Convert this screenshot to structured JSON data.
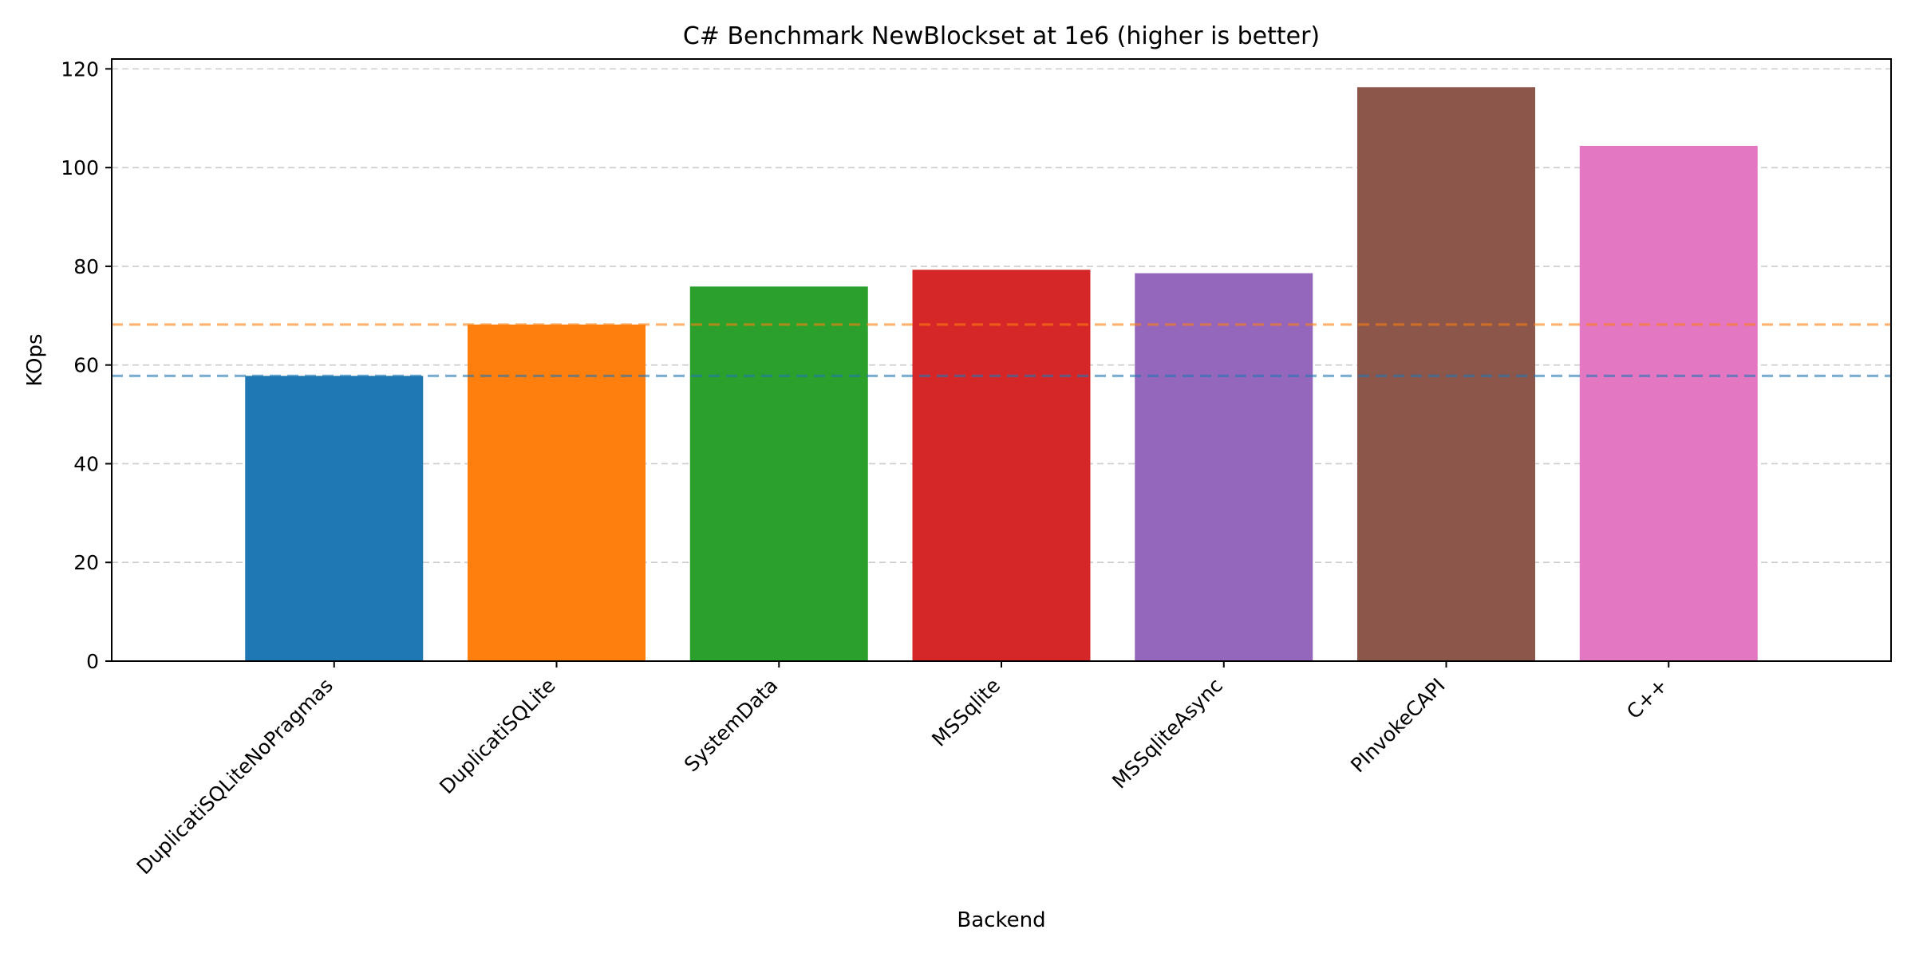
{
  "chart_data": {
    "type": "bar",
    "title": "C# Benchmark NewBlockset at 1e6 (higher is better)",
    "xlabel": "Backend",
    "ylabel": "KOps",
    "categories": [
      "DuplicatiSQLiteNoPragmas",
      "DuplicatiSQLite",
      "SystemData",
      "MSSqlite",
      "MSSqliteAsync",
      "PInvokeCAPI",
      "C++"
    ],
    "values": [
      57.8,
      68.2,
      75.9,
      79.3,
      78.6,
      116.3,
      104.4
    ],
    "colors": [
      "#1f77b4",
      "#ff7f0e",
      "#2ca02c",
      "#d62728",
      "#9467bd",
      "#8c564b",
      "#e377c2"
    ],
    "ylim": [
      0,
      122
    ],
    "yticks": [
      0,
      20,
      40,
      60,
      80,
      100,
      120
    ],
    "grid": "y-dashed",
    "reference_lines": [
      {
        "value": 57.8,
        "color": "#1f77b4",
        "style": "dashed"
      },
      {
        "value": 68.2,
        "color": "#ff7f0e",
        "style": "dashed"
      }
    ]
  }
}
